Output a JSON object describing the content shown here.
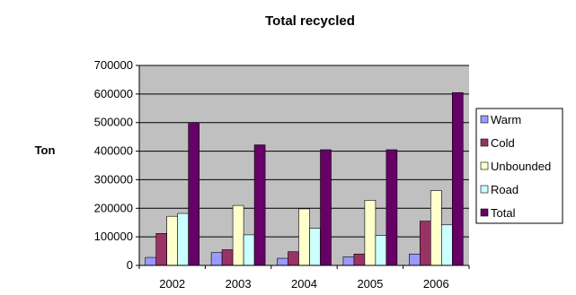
{
  "chart_data": {
    "type": "bar",
    "title": "Total recycled",
    "xlabel": "",
    "ylabel": "Ton",
    "categories": [
      "2002",
      "2003",
      "2004",
      "2005",
      "2006"
    ],
    "ylim": [
      0,
      700000
    ],
    "yticks": [
      0,
      100000,
      200000,
      300000,
      400000,
      500000,
      600000,
      700000
    ],
    "grid": true,
    "legend_position": "right",
    "plot_background": "#c0c0c0",
    "series": [
      {
        "name": "Warm",
        "color": "#9999ff",
        "values": [
          28000,
          45000,
          25000,
          30000,
          40000
        ]
      },
      {
        "name": "Cold",
        "color": "#993366",
        "values": [
          112000,
          55000,
          48000,
          40000,
          155000
        ]
      },
      {
        "name": "Unbounded",
        "color": "#ffffcc",
        "values": [
          172000,
          210000,
          198000,
          228000,
          262000
        ]
      },
      {
        "name": "Road",
        "color": "#ccffff",
        "values": [
          182000,
          107000,
          130000,
          105000,
          142000
        ]
      },
      {
        "name": "Total",
        "color": "#660066",
        "values": [
          500000,
          422000,
          405000,
          405000,
          605000
        ]
      }
    ]
  }
}
